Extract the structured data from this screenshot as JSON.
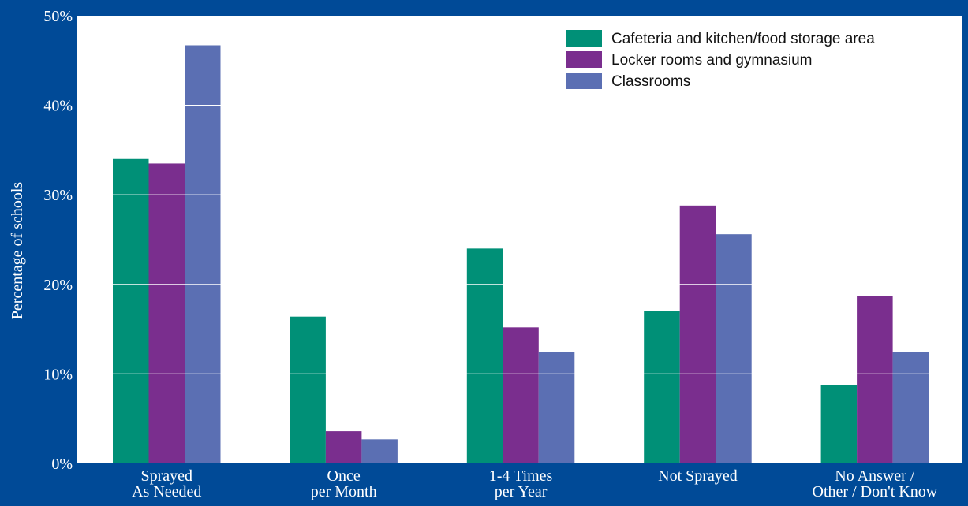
{
  "chart_data": {
    "type": "bar",
    "title": "",
    "xlabel": "",
    "ylabel": "Percentage of schools",
    "ylim": [
      0,
      50
    ],
    "yticks": [
      "0%",
      "10%",
      "20%",
      "30%",
      "40%",
      "50%"
    ],
    "grid": true,
    "legend_position": "top-right",
    "categories": [
      [
        "Sprayed",
        "As Needed"
      ],
      [
        "Once",
        "per Month"
      ],
      [
        "1-4 Times",
        "per Year"
      ],
      [
        "Not Sprayed"
      ],
      [
        "No Answer /",
        "Other / Don't Know"
      ]
    ],
    "series": [
      {
        "name": "Cafeteria and kitchen/food storage area",
        "color": "#009077",
        "values": [
          34,
          16.4,
          24,
          17,
          8.8
        ]
      },
      {
        "name": "Locker rooms and gymnasium",
        "color": "#7a2e8e",
        "values": [
          33.5,
          3.6,
          15.2,
          28.8,
          18.7
        ]
      },
      {
        "name": "Classrooms",
        "color": "#5b6fb3",
        "values": [
          46.7,
          2.7,
          12.5,
          25.6,
          12.5
        ]
      }
    ]
  },
  "colors": {
    "background": "#004a97",
    "plot_area": "#ffffff",
    "gridline": "#ffffff"
  }
}
